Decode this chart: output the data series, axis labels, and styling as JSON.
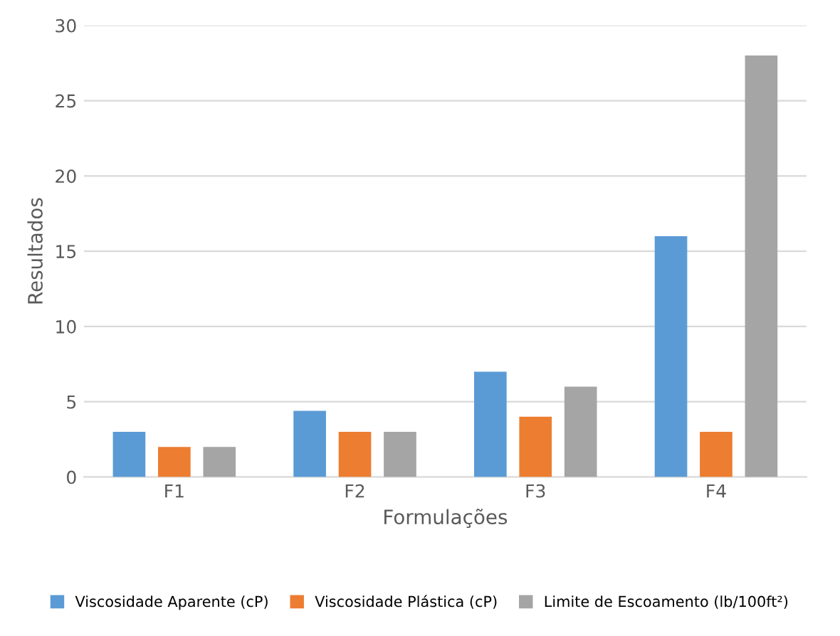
{
  "chart_data": {
    "type": "bar",
    "xlabel": "Formulações",
    "ylabel": "Resultados",
    "categories": [
      "F1",
      "F2",
      "F3",
      "F4"
    ],
    "series": [
      {
        "name": "Viscosidade Aparente (cP)",
        "color": "#5b9bd5",
        "values": [
          3,
          4.4,
          7,
          16
        ]
      },
      {
        "name": "Viscosidade Plástica (cP)",
        "color": "#ed7d31",
        "values": [
          2,
          3,
          4,
          3
        ]
      },
      {
        "name": "Limite de Escoamento (lb/100ft²)",
        "color": "#a5a5a5",
        "values": [
          2,
          3,
          6,
          28
        ]
      }
    ],
    "ylim": [
      0,
      30
    ],
    "yticks": [
      0,
      5,
      10,
      15,
      20,
      25,
      30
    ],
    "grid": "y",
    "legend": "bottom"
  }
}
